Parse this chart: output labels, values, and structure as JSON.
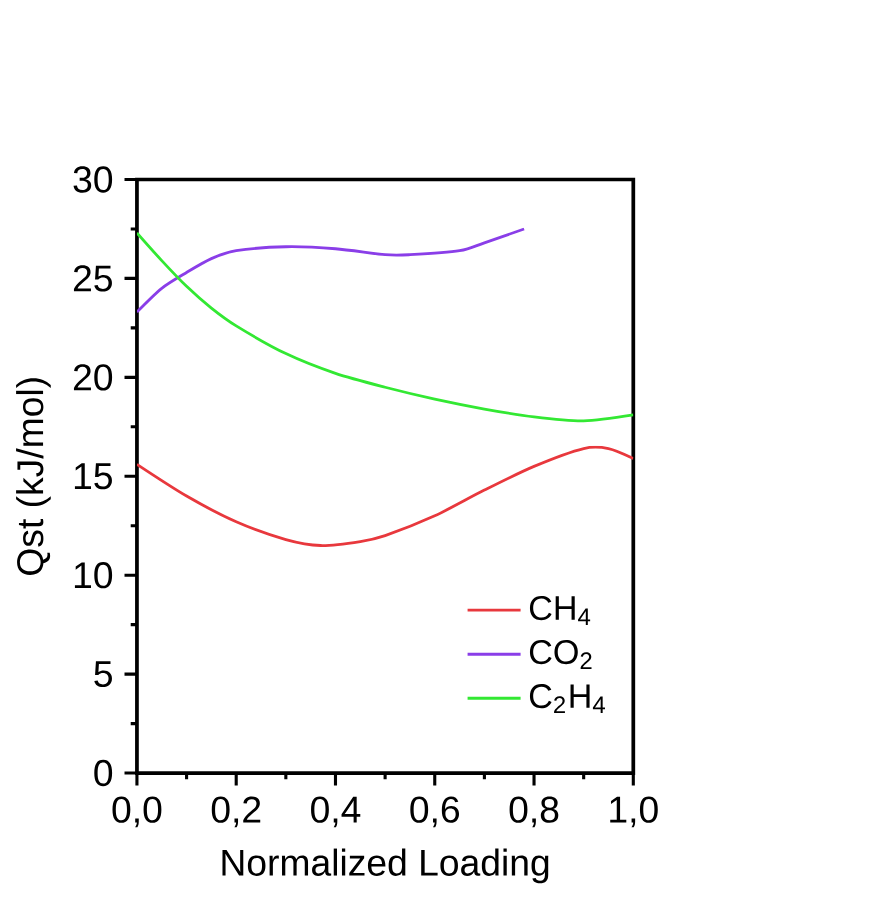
{
  "chart_data": {
    "type": "line",
    "xlabel": "Normalized Loading",
    "ylabel": "Qst (kJ/mol)",
    "xlim": [
      0,
      1
    ],
    "ylim": [
      0,
      30
    ],
    "xticks": [
      {
        "value": 0,
        "label": "0,0"
      },
      {
        "value": 0.2,
        "label": "0,2"
      },
      {
        "value": 0.4,
        "label": "0,4"
      },
      {
        "value": 0.6,
        "label": "0,6"
      },
      {
        "value": 0.8,
        "label": "0,8"
      },
      {
        "value": 1,
        "label": "1,0"
      }
    ],
    "yticks": [
      0,
      5,
      10,
      15,
      20,
      25,
      30
    ],
    "grid": false,
    "legend": "bottom right",
    "line_style": "solid",
    "marker": "none",
    "series": [
      {
        "name": "CH$_{4}$",
        "color": "#e8383d",
        "x": [
          0,
          0.1,
          0.2,
          0.3,
          0.37,
          0.45,
          0.5,
          0.6,
          0.7,
          0.8,
          0.9,
          0.95,
          1.0
        ],
        "values": [
          15.6,
          14.0,
          12.7,
          11.8,
          11.5,
          11.7,
          12.0,
          13.0,
          14.3,
          15.5,
          16.4,
          16.4,
          15.9
        ]
      },
      {
        "name": "CO$_{2}$",
        "color": "#8a3ee8",
        "x": [
          0,
          0.05,
          0.1,
          0.15,
          0.2,
          0.3,
          0.4,
          0.5,
          0.55,
          0.65,
          0.7,
          0.78
        ],
        "values": [
          23.3,
          24.5,
          25.3,
          26.0,
          26.4,
          26.6,
          26.5,
          26.2,
          26.2,
          26.4,
          26.8,
          27.5
        ]
      },
      {
        "name": "C$_{2}$H$_{4}$",
        "color": "#33e833",
        "x": [
          0,
          0.05,
          0.1,
          0.15,
          0.2,
          0.3,
          0.4,
          0.5,
          0.6,
          0.7,
          0.8,
          0.9,
          1.0
        ],
        "values": [
          27.3,
          25.9,
          24.6,
          23.5,
          22.6,
          21.2,
          20.2,
          19.5,
          18.9,
          18.4,
          18.0,
          17.8,
          18.1
        ]
      }
    ]
  }
}
